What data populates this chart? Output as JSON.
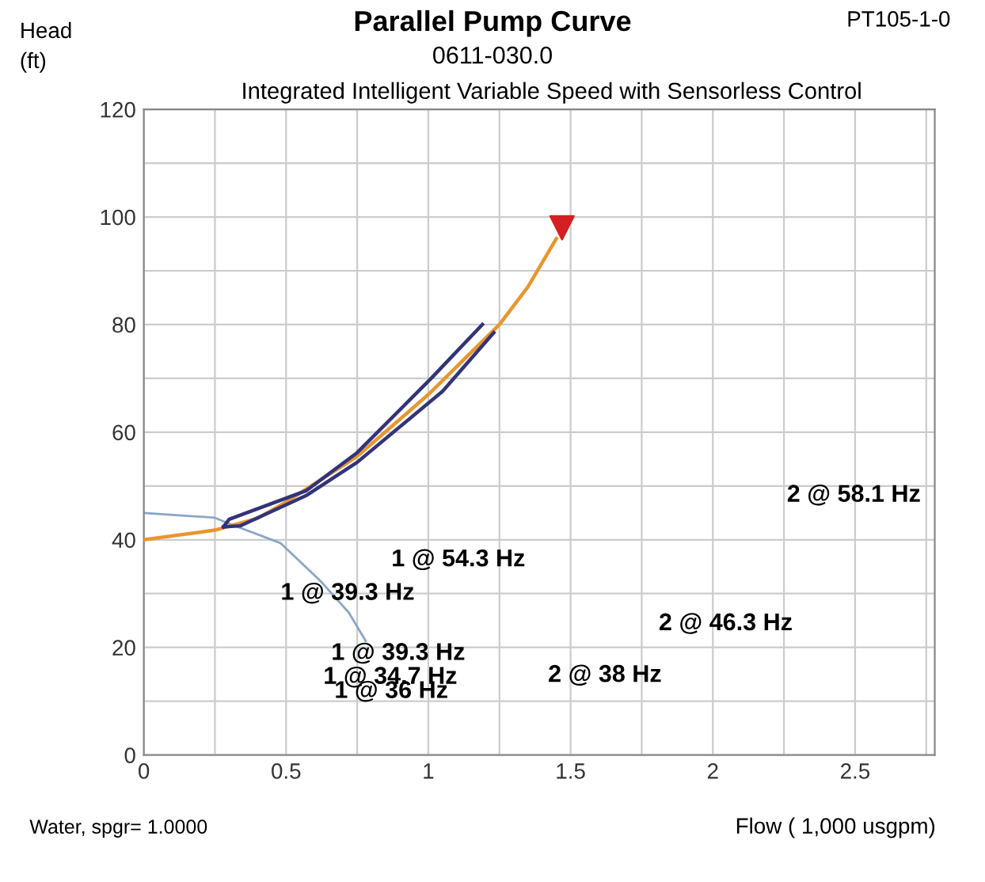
{
  "chart_data": {
    "type": "line",
    "title": "Parallel Pump Curve",
    "subtitle": "0611-030.0",
    "xlabel": "Flow ( 1,000 usgpm)",
    "ylabel": "Head\n(ft)",
    "xlim": [
      0,
      2.78
    ],
    "ylim": [
      0,
      120
    ],
    "xticks": [
      0,
      {
        "value": 0.25,
        "label": null
      },
      0.5,
      {
        "value": 0.75,
        "label": null
      },
      1,
      {
        "value": 1.25,
        "label": null
      },
      1.5,
      {
        "value": 1.75,
        "label": null
      },
      2,
      {
        "value": 2.25,
        "label": null
      },
      2.5,
      {
        "value": 2.75,
        "label": null
      }
    ],
    "yticks": [
      0,
      {
        "value": 10,
        "label": null
      },
      20,
      {
        "value": 30,
        "label": null
      },
      40,
      {
        "value": 50,
        "label": null
      },
      60,
      {
        "value": 70,
        "label": null
      },
      80,
      {
        "value": 90,
        "label": null
      },
      100,
      {
        "value": 110,
        "label": null
      },
      120
    ],
    "grid": true,
    "legend": false,
    "series": [
      {
        "color": "#8aa6c8",
        "x": [
          0,
          0.25,
          0.29,
          0.48,
          0.62,
          0.72,
          0.78
        ],
        "values": [
          45,
          44.1,
          43.2,
          39.4,
          32.4,
          26.5,
          21.2
        ]
      },
      {
        "color": "#e8962e",
        "x": [
          0,
          0.25,
          0.4,
          0.5,
          0.75,
          1,
          1.25,
          1.35,
          1.45
        ],
        "values": [
          40,
          41.8,
          44,
          47,
          55.5,
          67,
          80,
          87,
          96
        ]
      },
      {
        "color": "#33337a",
        "x": [
          0.28,
          0.3,
          0.57,
          0.75,
          1.01,
          1.19
        ],
        "values": [
          42.4,
          43.8,
          49.1,
          56.2,
          70,
          80
        ]
      },
      {
        "color": "#33337a",
        "x": [
          0.28,
          0.34,
          0.57,
          0.75,
          1.05,
          1.23
        ],
        "values": [
          42.4,
          42.6,
          48.2,
          54.4,
          67.6,
          78.5
        ]
      },
      {
        "type": "scatter",
        "color": "#d42020",
        "marker": "triangle",
        "x": [
          1.47
        ],
        "values": [
          98
        ]
      }
    ],
    "annotations": [
      "PT105-1-0",
      "Integrated Intelligent Variable Speed with Sensorless Control",
      "Water, spgr= 1.0000",
      "2 @ 58.1 Hz",
      "1 @ 54.3 Hz",
      "1 @ 39.3 Hz",
      "2 @ 46.3 Hz",
      "1 @ 39.3 Hz",
      "1 @ 34.7 Hz",
      "1 @ 36 Hz",
      "2 @ 38 Hz"
    ]
  }
}
